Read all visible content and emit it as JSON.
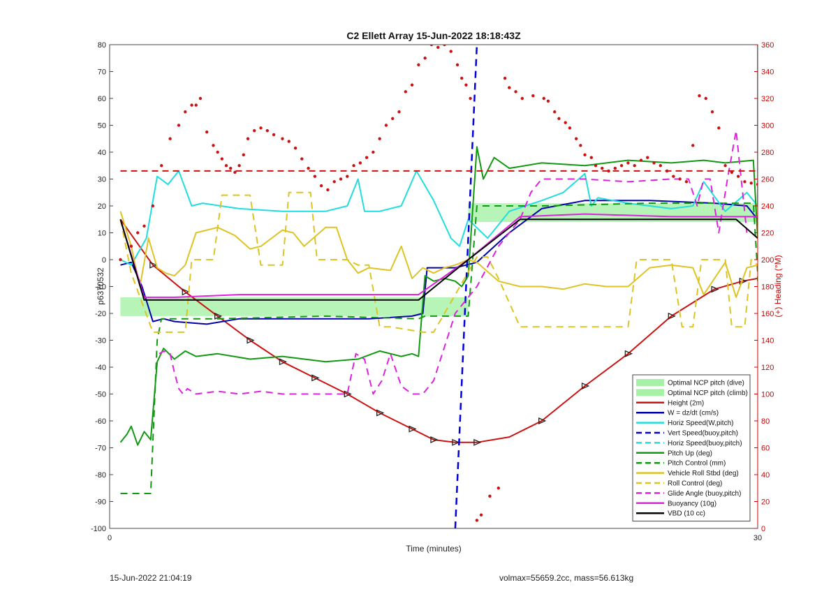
{
  "footer": {
    "left_text": "15-Jun-2022 21:04:19",
    "right_text": "volmax=55659.2cc, mass=56.613kg"
  },
  "chart_data": {
    "type": "line",
    "title": "C2 Ellett Array 15-Jun-2022 18:18:43Z",
    "xlabel": "Time (minutes)",
    "ylabel": "p6370532",
    "y2label": "(+) Heading (°M)",
    "xlim": [
      0,
      30
    ],
    "ylim": [
      -100,
      80
    ],
    "y2lim": [
      0,
      360
    ],
    "x_ticks": [
      0,
      30
    ],
    "y_ticks": [
      -100,
      -90,
      -80,
      -70,
      -60,
      -50,
      -40,
      -30,
      -20,
      -10,
      0,
      10,
      20,
      30,
      40,
      50,
      60,
      70,
      80
    ],
    "y2_ticks": [
      0,
      20,
      40,
      60,
      80,
      100,
      120,
      140,
      160,
      180,
      200,
      220,
      240,
      260,
      280,
      300,
      320,
      340,
      360
    ],
    "grid": false,
    "legend_position": "bottom-right",
    "shaded_bands": [
      {
        "name": "Optimal NCP pitch (dive)",
        "color": "#90ee90",
        "x": [
          0.5,
          16.6
        ],
        "y": [
          -21,
          -14
        ]
      },
      {
        "name": "Optimal NCP pitch (climb)",
        "color": "#90ee90",
        "x": [
          16.6,
          30.0
        ],
        "y": [
          14,
          21
        ]
      }
    ],
    "series": [
      {
        "name": "Height (2m)",
        "color": "#cc1111",
        "style": "solid",
        "width": 2,
        "markers": "triangle",
        "x": [
          0.5,
          2.0,
          3.5,
          5.0,
          6.5,
          8.0,
          9.5,
          11.0,
          12.5,
          14.0,
          15.0,
          16.0,
          17.0,
          18.5,
          20.0,
          22.0,
          24.0,
          26.0,
          28.0,
          29.3,
          30.0
        ],
        "y": [
          15,
          -2,
          -12,
          -21,
          -30,
          -38,
          -44,
          -50,
          -57,
          -63,
          -67,
          -68,
          -68,
          -66,
          -60,
          -47,
          -35,
          -21,
          -11,
          -8,
          -7
        ]
      },
      {
        "name": "W = dz/dt (cm/s)",
        "color": "#0000aa",
        "style": "solid",
        "width": 2,
        "x": [
          0.5,
          1.0,
          1.5,
          2.0,
          2.5,
          3.0,
          4.5,
          6.0,
          9.0,
          12.0,
          14.0,
          14.5,
          14.7,
          15.0,
          16.0,
          17.0,
          18.5,
          20.0,
          22.0,
          25.0,
          28.0,
          29.5,
          30.0
        ],
        "y": [
          -2,
          -1,
          -10,
          -23,
          -22,
          -23,
          -24,
          -22,
          -22,
          -22,
          -21,
          -20,
          -3,
          -3,
          -3,
          -1,
          10,
          19,
          22,
          22,
          21,
          20,
          15
        ]
      },
      {
        "name": "Horiz Speed(W,pitch)",
        "color": "#22dddd",
        "style": "solid",
        "width": 2,
        "x": [
          0.5,
          1.0,
          1.7,
          2.2,
          2.7,
          3.2,
          3.8,
          4.3,
          6.0,
          8.0,
          10.0,
          11.0,
          11.5,
          11.8,
          12.5,
          13.5,
          14.2,
          15.0,
          15.8,
          16.2,
          16.6,
          17.5,
          18.5,
          20.0,
          21.0,
          22.0,
          22.3,
          22.6,
          24.0,
          26.0,
          27.0,
          27.5,
          28.5,
          29.5,
          30.0,
          30.0
        ],
        "y": [
          0,
          -2,
          8,
          31,
          28,
          33,
          20,
          21,
          19,
          18,
          18,
          20,
          30,
          18,
          18,
          20,
          33,
          22,
          8,
          5,
          15,
          8,
          18,
          22,
          25,
          32,
          20,
          23,
          21,
          19,
          20,
          29,
          18,
          25,
          20,
          80
        ]
      },
      {
        "name": "Vert Speed(buoy,pitch)",
        "color": "#0000dd",
        "style": "dashed",
        "width": 2.5,
        "x": [
          16.0,
          17.0
        ],
        "y": [
          -100,
          80
        ]
      },
      {
        "name": "Horiz Speed(buoy,pitch)",
        "color": "#22dddd",
        "style": "dashed",
        "width": 2,
        "x": [],
        "y": []
      },
      {
        "name": "Pitch Up (deg)",
        "color": "#119911",
        "style": "solid",
        "width": 2,
        "x": [
          0.5,
          0.8,
          1.0,
          1.3,
          1.6,
          1.9,
          2.2,
          2.5,
          3.0,
          3.5,
          4.0,
          5.0,
          6.5,
          8.0,
          10.0,
          11.5,
          12.5,
          13.5,
          14.0,
          14.3,
          14.6,
          15.0,
          15.5,
          16.0,
          16.3,
          16.6,
          17.0,
          17.3,
          17.8,
          18.5,
          20.0,
          22.0,
          24.0,
          26.0,
          27.5,
          28.5,
          29.8,
          30.0
        ],
        "y": [
          -68,
          -65,
          -62,
          -69,
          -64,
          -67,
          -38,
          -33,
          -37,
          -34,
          -36,
          -35,
          -37,
          -36,
          -38,
          -37,
          -34,
          -36,
          -35,
          -36,
          -6,
          -8,
          -7,
          -8,
          -10,
          -6,
          42,
          30,
          38,
          34,
          36,
          35,
          37,
          36,
          37,
          36,
          37,
          8
        ]
      },
      {
        "name": "Pitch Control (mm)",
        "color": "#119911",
        "style": "dashed",
        "width": 2,
        "x": [
          0.5,
          1.6,
          1.9,
          2.2,
          2.4,
          5.0,
          10.0,
          14.3,
          14.6,
          16.6,
          17.0,
          20.0,
          25.0,
          29.8,
          30.0,
          30.0
        ],
        "y": [
          -87,
          -87,
          -87,
          -30,
          -22,
          -22,
          -21,
          -22,
          -21,
          -21,
          20,
          20,
          21,
          21,
          -5,
          -8
        ]
      },
      {
        "name": "Vehicle Roll Stbd (deg)",
        "color": "#ddc422",
        "style": "solid",
        "width": 2,
        "x": [
          0.5,
          1.0,
          1.4,
          1.8,
          2.2,
          2.6,
          3.0,
          3.5,
          4.0,
          5.0,
          5.8,
          6.5,
          7.0,
          8.0,
          8.5,
          9.0,
          10.0,
          10.5,
          11.0,
          11.5,
          12.0,
          13.0,
          13.5,
          14.0,
          14.5,
          15.0,
          15.5,
          16.0,
          16.6,
          17.0,
          18.0,
          19.0,
          20.0,
          21.0,
          22.0,
          23.0,
          24.0,
          25.0,
          26.0,
          27.0,
          27.5,
          28.0,
          28.5,
          29.0,
          29.5,
          30.0
        ],
        "y": [
          18,
          5,
          -10,
          8,
          -3,
          -5,
          -6,
          -2,
          10,
          12,
          9,
          4,
          5,
          11,
          10,
          5,
          12,
          12,
          0,
          -5,
          -3,
          -4,
          5,
          -7,
          -3,
          -5,
          -3,
          -2,
          0,
          -1,
          -8,
          -10,
          -10,
          -11,
          -9,
          -10,
          -10,
          -3,
          -2,
          -3,
          -13,
          -7,
          -1,
          -14,
          -3,
          -2
        ]
      },
      {
        "name": "Roll Control (deg)",
        "color": "#ddc422",
        "style": "dashed",
        "width": 2,
        "x": [
          0.5,
          1.0,
          2.0,
          2.2,
          3.5,
          3.8,
          4.8,
          5.2,
          6.5,
          7.0,
          8.0,
          8.3,
          9.3,
          9.6,
          11.0,
          11.5,
          12.0,
          12.5,
          13.0,
          14.5,
          15.0,
          17.0,
          17.5,
          18.0,
          19.0,
          19.5,
          21.0,
          21.5,
          24.0,
          24.4,
          26.0,
          26.5,
          27.0,
          27.4,
          28.5,
          28.8,
          29.4,
          29.7,
          30.0
        ],
        "y": [
          15,
          -5,
          -27,
          -27,
          -27,
          0,
          0,
          24,
          24,
          -2,
          -2,
          25,
          25,
          0,
          0,
          -2,
          -2,
          -25,
          -25,
          -27,
          -27,
          1,
          1,
          -7,
          -25,
          -25,
          -25,
          -25,
          -25,
          0,
          0,
          -25,
          -25,
          0,
          0,
          -25,
          -25,
          0,
          -2
        ]
      },
      {
        "name": "Glide Angle (buoy,pitch)",
        "color": "#dd22dd",
        "style": "dashed",
        "width": 2,
        "x": [
          2.3,
          2.5,
          2.8,
          3.0,
          3.2,
          3.4,
          3.6,
          3.8,
          4.0,
          5.0,
          6.0,
          7.0,
          8.0,
          9.0,
          10.0,
          11.0,
          11.4,
          11.8,
          12.2,
          12.6,
          13.0,
          13.5,
          14.0,
          14.5,
          15.0,
          16.0,
          17.0,
          18.0,
          19.0,
          19.5,
          20.0,
          22.0,
          24.0,
          26.0,
          26.4,
          26.8,
          27.2,
          27.5,
          27.8,
          28.2,
          28.6,
          29.0,
          29.5
        ],
        "y": [
          -35,
          -34,
          -35,
          -42,
          -48,
          -50,
          -48,
          -49,
          -50,
          -49,
          -50,
          -49,
          -50,
          -50,
          -50,
          -50,
          -35,
          -37,
          -50,
          -45,
          -35,
          -47,
          -50,
          -50,
          -45,
          -20,
          -10,
          5,
          15,
          25,
          30,
          30,
          29,
          30,
          30,
          30,
          20,
          30,
          30,
          10,
          30,
          48,
          10
        ]
      },
      {
        "name": "Buoyancy (10g)",
        "color": "#dd22dd",
        "style": "solid",
        "width": 2,
        "x": [
          0.5,
          1.6,
          3.0,
          6.0,
          10.0,
          14.3,
          16.6,
          19.0,
          22.0,
          26.0,
          29.0,
          30.0
        ],
        "y": [
          15,
          -14,
          -14,
          -13,
          -13,
          -13,
          0,
          16,
          17,
          16,
          16,
          16
        ]
      },
      {
        "name": "VBD (10 cc)",
        "color": "#000000",
        "style": "solid",
        "width": 2,
        "x": [
          0.5,
          1.6,
          3.0,
          6.0,
          10.0,
          14.3,
          16.6,
          19.0,
          22.0,
          26.0,
          29.0,
          30.0
        ],
        "y": [
          15,
          -15,
          -15,
          -15,
          -15,
          -15,
          0,
          15,
          15,
          15,
          15,
          8
        ]
      },
      {
        "name": "",
        "color": "#cc1111",
        "style": "dashed-heading",
        "width": 2,
        "axis": "right",
        "x": [
          0.5,
          30.0
        ],
        "y": [
          266,
          266
        ]
      },
      {
        "name": "",
        "color": "#cc1111",
        "style": "dots",
        "axis": "right",
        "x": [
          0.5,
          1.0,
          1.3,
          1.6,
          2.0,
          2.4,
          2.8,
          3.2,
          3.5,
          3.8,
          4.0,
          4.2,
          4.5,
          4.8,
          5.0,
          5.2,
          5.4,
          5.6,
          5.8,
          6.0,
          6.2,
          6.4,
          6.7,
          7.0,
          7.3,
          7.6,
          8.0,
          8.3,
          8.6,
          8.9,
          9.2,
          9.5,
          9.8,
          10.1,
          10.4,
          10.7,
          11.0,
          11.3,
          11.6,
          11.9,
          12.2,
          12.5,
          12.8,
          13.1,
          13.4,
          13.7,
          14.0,
          14.3,
          14.6,
          14.9,
          15.2,
          15.5,
          15.8,
          16.1,
          16.3,
          16.5,
          16.7,
          17.0,
          17.2,
          17.6,
          18.0,
          18.3,
          18.5,
          18.8,
          19.1,
          19.6,
          20.1,
          20.3,
          20.6,
          20.8,
          21.1,
          21.3,
          21.6,
          21.8,
          22.0,
          22.3,
          22.5,
          22.8,
          23.1,
          23.4,
          23.7,
          24.0,
          24.3,
          24.6,
          24.9,
          25.2,
          25.5,
          25.8,
          26.1,
          26.4,
          26.7,
          27.0,
          27.3,
          27.6,
          27.9,
          28.2,
          28.5,
          28.8,
          29.1,
          29.4,
          29.7,
          30.0
        ],
        "y": [
          200,
          210,
          220,
          225,
          240,
          270,
          290,
          300,
          310,
          315,
          315,
          320,
          295,
          285,
          280,
          275,
          270,
          268,
          265,
          270,
          278,
          290,
          296,
          298,
          296,
          293,
          290,
          288,
          283,
          275,
          268,
          262,
          255,
          252,
          258,
          260,
          262,
          270,
          272,
          276,
          280,
          290,
          300,
          305,
          310,
          325,
          330,
          345,
          350,
          360,
          358,
          360,
          355,
          345,
          335,
          330,
          320,
          6,
          10,
          24,
          30,
          335,
          328,
          325,
          320,
          322,
          320,
          318,
          310,
          305,
          302,
          298,
          290,
          285,
          278,
          276,
          270,
          268,
          266,
          268,
          270,
          272,
          270,
          274,
          276,
          272,
          270,
          266,
          262,
          260,
          258,
          285,
          322,
          320,
          310,
          298,
          270,
          265,
          262,
          258,
          257,
          256
        ]
      }
    ]
  }
}
